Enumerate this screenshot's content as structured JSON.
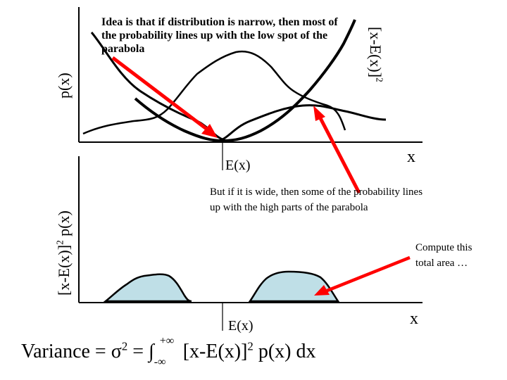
{
  "top_plot": {
    "y_label": "p(x)",
    "y_label2": "[x-E(x)]",
    "y_label2_sup": "2",
    "mean_label": "E(x)",
    "x_label": "x"
  },
  "bottom_plot": {
    "y_label": "[x-E(x)]",
    "y_label_sup": "2",
    "y_label_tail": " p(x)",
    "mean_label": "E(x)",
    "x_label": "x"
  },
  "notes": {
    "narrow": "Idea is that if distribution is narrow, then most of the probability lines up with the low spot of the parabola",
    "wide": "But if it is wide, then some of the probability lines up with the high parts of the parabola",
    "area_line1": "Compute this",
    "area_line2": "total area …"
  },
  "formula": {
    "lhs": "Variance = σ",
    "sq": "2",
    "eq": " = ∫",
    "lower": "-∞",
    "upper": "+∞",
    "integrand": " [x-E(x)]",
    "integrand_sq": "2",
    "tail": " p(x) dx"
  },
  "colors": {
    "arrow": "#ff0000",
    "area_fill": "#bfdfe7",
    "curve": "#000000"
  }
}
